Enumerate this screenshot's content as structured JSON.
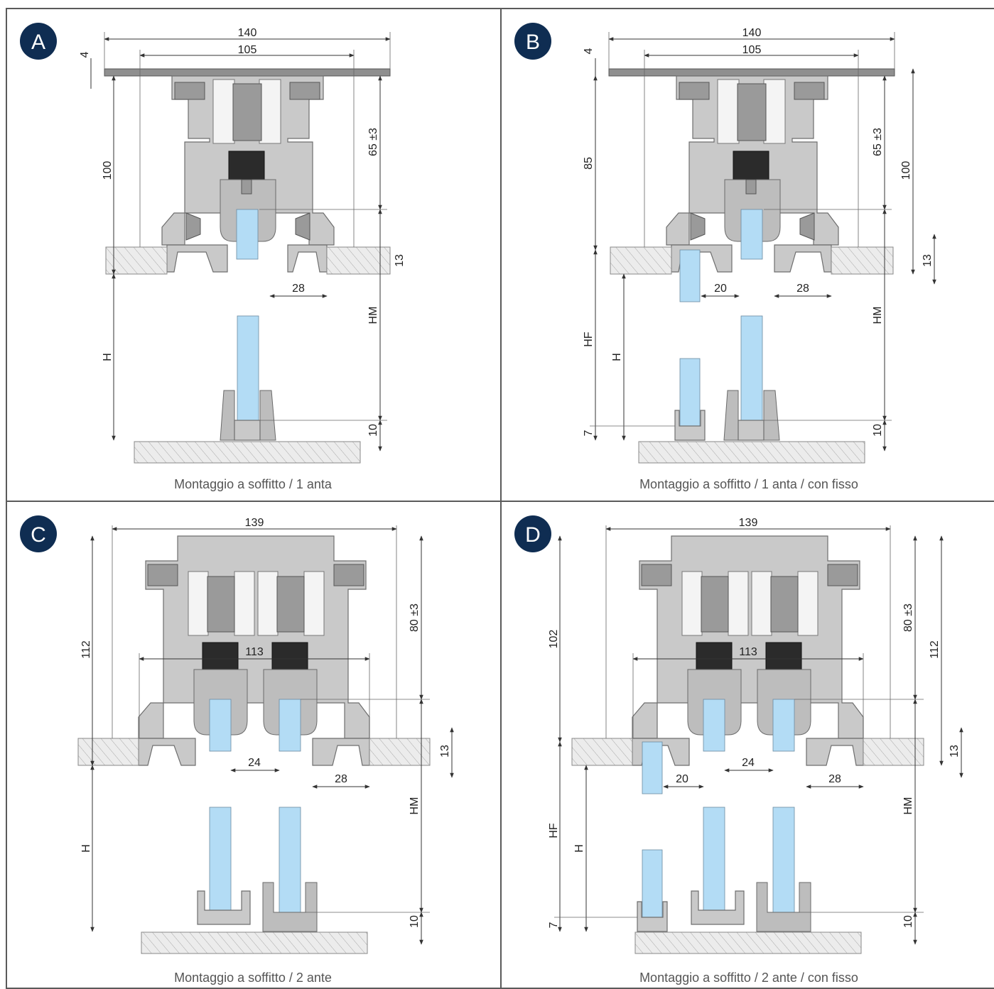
{
  "badge_color": "#0f2d52",
  "panels": [
    {
      "id": "A",
      "caption": "Montaggio a soffitto / 1 anta",
      "dims": {
        "width_outer": "140",
        "width_inner": "105",
        "plate": "4",
        "height_left": "100",
        "height_right": "65 ±3",
        "ceiling": "13",
        "gap": "28",
        "h": "H",
        "hm": "HM",
        "bottom": "10"
      }
    },
    {
      "id": "B",
      "caption": "Montaggio a soffitto / 1 anta / con fisso",
      "dims": {
        "width_outer": "140",
        "width_inner": "105",
        "plate": "4",
        "height_left": "85",
        "height_right": "65 ±3",
        "height_far": "100",
        "ceiling": "13",
        "gap_fixed": "20",
        "gap": "28",
        "hf": "HF",
        "h": "H",
        "hm": "HM",
        "fixed_bottom": "7",
        "bottom": "10"
      }
    },
    {
      "id": "C",
      "caption": "Montaggio a soffitto / 2 ante",
      "dims": {
        "width_outer": "139",
        "width_inner": "113",
        "height_left": "112",
        "height_right": "80 ±3",
        "ceiling": "13",
        "gap_mid": "24",
        "gap": "28",
        "h": "H",
        "hm": "HM",
        "bottom": "10"
      }
    },
    {
      "id": "D",
      "caption": "Montaggio a soffitto / 2 ante / con fisso",
      "dims": {
        "width_outer": "139",
        "width_inner": "113",
        "height_left": "102",
        "height_right": "80 ±3",
        "height_far": "112",
        "ceiling": "13",
        "gap_fixed": "20",
        "gap_mid": "24",
        "gap": "28",
        "hf": "HF",
        "h": "H",
        "hm": "HM",
        "fixed_bottom": "7",
        "bottom": "10"
      }
    }
  ]
}
